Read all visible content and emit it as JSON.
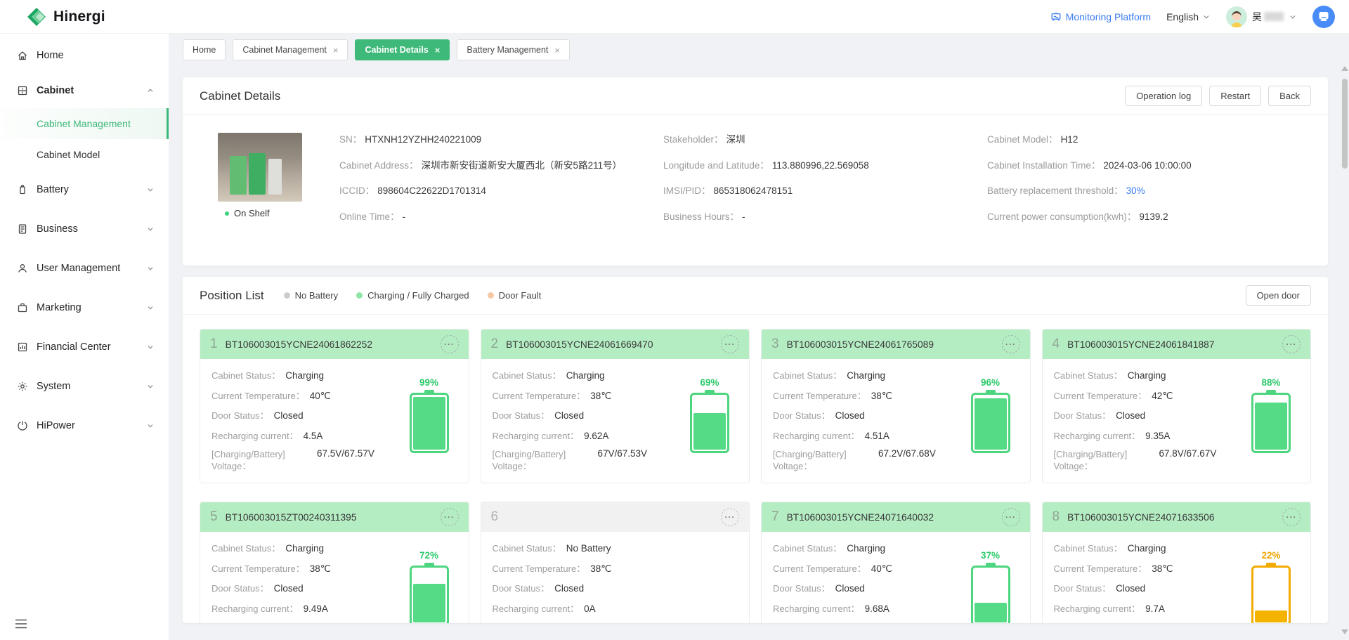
{
  "header": {
    "brand": "Hinergi",
    "monitoring_platform": "Monitoring Platform",
    "language": "English",
    "username": "吴"
  },
  "sidebar": {
    "items": [
      {
        "label": "Home"
      },
      {
        "label": "Cabinet"
      },
      {
        "label": "Cabinet Management"
      },
      {
        "label": "Cabinet Model"
      },
      {
        "label": "Battery"
      },
      {
        "label": "Business"
      },
      {
        "label": "User Management"
      },
      {
        "label": "Marketing"
      },
      {
        "label": "Financial Center"
      },
      {
        "label": "System"
      },
      {
        "label": "HiPower"
      }
    ]
  },
  "tabs": {
    "items": [
      {
        "label": "Home"
      },
      {
        "label": "Cabinet Management"
      },
      {
        "label": "Cabinet Details"
      },
      {
        "label": "Battery Management"
      }
    ]
  },
  "details": {
    "title": "Cabinet Details",
    "operation_log": "Operation log",
    "restart": "Restart",
    "back": "Back",
    "photo_status": "On Shelf",
    "fields": {
      "sn_label": "SN：",
      "sn": "HTXNH12YZHH240221009",
      "address_label": "Cabinet Address：",
      "address": "深圳市新安街道新安大厦西北（新安5路211号）",
      "iccid_label": "ICCID：",
      "iccid": "898604C22622D1701314",
      "online_label": "Online Time：",
      "online": "-",
      "stakeholder_label": "Stakeholder：",
      "stakeholder": "深圳",
      "lnglat_label": "Longitude and Latitude：",
      "lnglat": "113.880996,22.569058",
      "imsi_label": "IMSI/PID：",
      "imsi": "865318062478151",
      "hours_label": "Business Hours：",
      "hours": "-",
      "model_label": "Cabinet Model：",
      "model": "H12",
      "install_label": "Cabinet Installation Time：",
      "install": "2024-03-06 10:00:00",
      "threshold_label": "Battery replacement threshold：",
      "threshold": "30%",
      "power_label": "Current power consumption(kwh)：",
      "power": "9139.2"
    }
  },
  "positions": {
    "title": "Position List",
    "open_door": "Open door",
    "legend": [
      {
        "label": "No Battery",
        "color": "#cccccc"
      },
      {
        "label": "Charging / Fully Charged",
        "color": "#8fe5aa"
      },
      {
        "label": "Door Fault",
        "color": "#f6c9a4"
      }
    ],
    "row_labels": {
      "status": "Cabinet Status：",
      "temperature": "Current Temperature：",
      "door": "Door Status：",
      "current": "Recharging current：",
      "voltage_line1": "[Charging/Battery]",
      "voltage_line2": "Voltage："
    },
    "items": [
      {
        "num": "1",
        "serial": "BT106003015YCNE24061862252",
        "header": "green",
        "status": "Charging",
        "temperature": "40℃",
        "door": "Closed",
        "current": "4.5A",
        "voltage": "67.5V/67.57V",
        "pct": "99%",
        "tone": "green"
      },
      {
        "num": "2",
        "serial": "BT106003015YCNE24061669470",
        "header": "green",
        "status": "Charging",
        "temperature": "38℃",
        "door": "Closed",
        "current": "9.62A",
        "voltage": "67V/67.53V",
        "pct": "69%",
        "tone": "green"
      },
      {
        "num": "3",
        "serial": "BT106003015YCNE24061765089",
        "header": "green",
        "status": "Charging",
        "temperature": "38℃",
        "door": "Closed",
        "current": "4.51A",
        "voltage": "67.2V/67.68V",
        "pct": "96%",
        "tone": "green"
      },
      {
        "num": "4",
        "serial": "BT106003015YCNE24061841887",
        "header": "green",
        "status": "Charging",
        "temperature": "42℃",
        "door": "Closed",
        "current": "9.35A",
        "voltage": "67.8V/67.67V",
        "pct": "88%",
        "tone": "green"
      },
      {
        "num": "5",
        "serial": "BT106003015ZT00240311395",
        "header": "green",
        "status": "Charging",
        "temperature": "38℃",
        "door": "Closed",
        "current": "9.49A",
        "pct": "72%",
        "tone": "green"
      },
      {
        "num": "6",
        "serial": "",
        "header": "gray",
        "status": "No Battery",
        "temperature": "38℃",
        "door": "Closed",
        "current": "0A"
      },
      {
        "num": "7",
        "serial": "BT106003015YCNE24071640032",
        "header": "green",
        "status": "Charging",
        "temperature": "40℃",
        "door": "Closed",
        "current": "9.68A",
        "pct": "37%",
        "tone": "green"
      },
      {
        "num": "8",
        "serial": "BT106003015YCNE24071633506",
        "header": "green",
        "status": "Charging",
        "temperature": "38℃",
        "door": "Closed",
        "current": "9.7A",
        "pct": "22%",
        "tone": "orange"
      }
    ]
  },
  "icons": {
    "close": "×",
    "ellipsis": "···"
  },
  "colors": {
    "primary_green": "#3eb979",
    "position_header_green": "#b5edc3",
    "battery_green": "#4ed57f",
    "battery_orange": "#f2ab00",
    "percent_green": "#2cc96a",
    "percent_orange": "#f0a400",
    "link_blue": "#3a7bf0",
    "page_background": "#f0f2f5",
    "no_battery_gray": "#f1f1f1"
  }
}
